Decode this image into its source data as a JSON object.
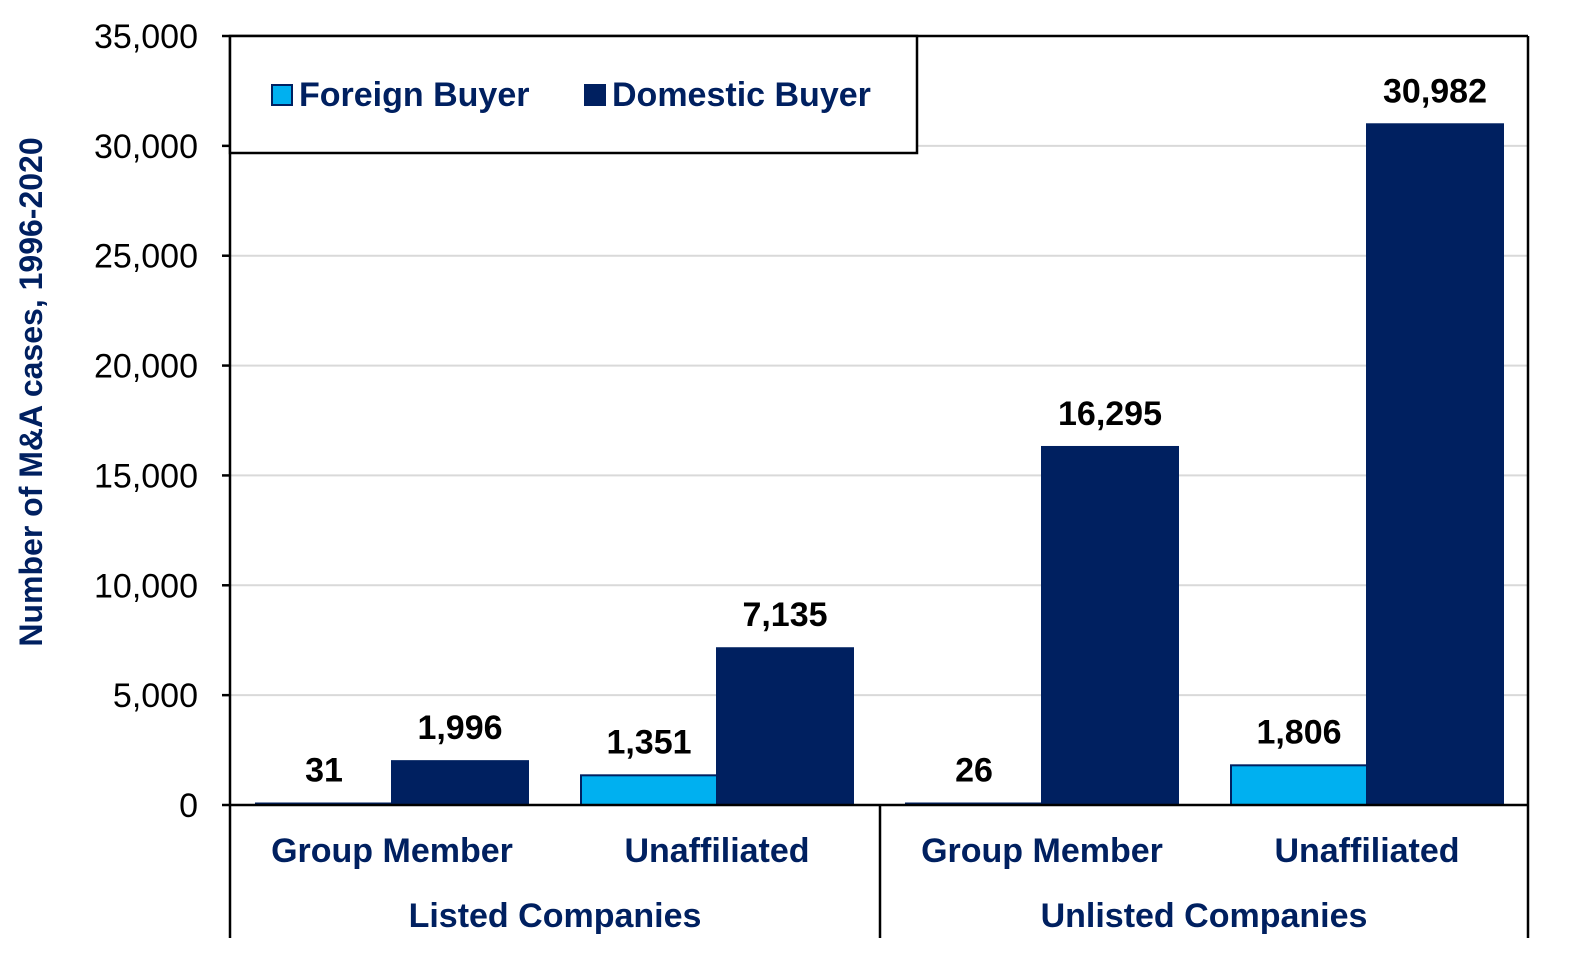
{
  "chart_data": {
    "type": "bar",
    "ylabel": "Number of M&A cases, 1996-2020",
    "ylim": [
      0,
      35000
    ],
    "yticks": [
      "0",
      "5,000",
      "10,000",
      "15,000",
      "20,000",
      "25,000",
      "30,000",
      "35,000"
    ],
    "grid": "horizontal",
    "legend_position": "top-left",
    "groups": [
      "Listed Companies",
      "Unlisted Companies"
    ],
    "categories": [
      "Group Member",
      "Unaffiliated",
      "Group Member",
      "Unaffiliated"
    ],
    "series": [
      {
        "name": "Foreign Buyer",
        "color": "#00B0F0",
        "values": [
          31,
          1351,
          26,
          1806
        ],
        "labels": [
          "31",
          "1,351",
          "26",
          "1,806"
        ]
      },
      {
        "name": "Domestic Buyer",
        "color": "#002060",
        "values": [
          1996,
          7135,
          16295,
          30982
        ],
        "labels": [
          "1,996",
          "7,135",
          "16,295",
          "30,982"
        ]
      }
    ]
  }
}
